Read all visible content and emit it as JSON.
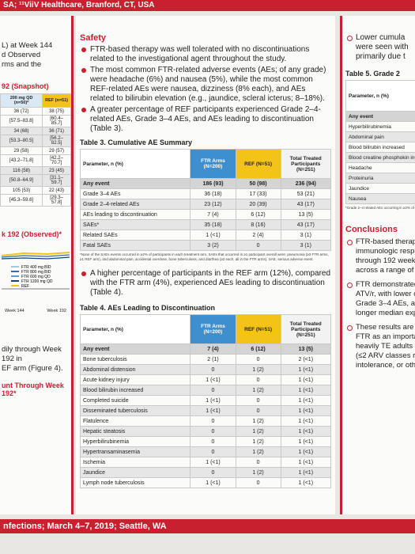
{
  "header": {
    "text": "SA; ¹¹ViiV Healthcare, Branford, CT, USA"
  },
  "footer": {
    "text": "nfections; March 4–7, 2019; Seattle, WA"
  },
  "left": {
    "lines": [
      "L) at Week 144",
      "d Observed",
      "rms and the"
    ],
    "table_title": "92 (Snapshot)",
    "table_headers": [
      "200 mg QD (n=50)*",
      "REF (n=51)"
    ],
    "table_rows": [
      [
        "36 (72)",
        "38 (75)"
      ],
      [
        "[57.5–83.8]",
        "[60.4–85.7]"
      ],
      [
        "34 (68)",
        "36 (71)"
      ],
      [
        "[53.3–80.5]",
        "[56.2–82.5]"
      ],
      [
        "29 (58)",
        "29 (57)"
      ],
      [
        "[43.2–71.8]",
        "[42.2–70.7]"
      ],
      [
        "116 (58)",
        "23 (45)"
      ],
      [
        "[50.8–64.9]",
        "[31.1–59.7]"
      ],
      [
        "105 (53)",
        "22 (43)"
      ],
      [
        "[45.3–59.6]",
        "[29.3–57.8]"
      ]
    ],
    "figure_title": "k 192 (Observed)*",
    "legend": [
      "FTR 400 mg BID",
      "FTR 800 mg BID",
      "FTR 600 mg QD",
      "FTR 1200 mg QD",
      "REF"
    ],
    "axis_labels": [
      "Week 144",
      "Week 192"
    ],
    "text2": [
      "dily through Week 192 in",
      "EF arm (Figure 4)."
    ],
    "figure2_title": "unt Through Week 192*"
  },
  "safety": {
    "title": "Safety",
    "bullets": [
      "FTR-based therapy was well tolerated with no discontinuations related to the investigational agent throughout the study.",
      "The most common FTR-related adverse events (AEs; of any grade) were headache (6%) and nausea (5%), while the most common REF-related AEs were nausea, dizziness (8% each), and AEs related to bilirubin elevation (e.g., jaundice, scleral icterus; 8–18%).",
      "A greater percentage of REF participants experienced Grade 2–4-related AEs, Grade 3–4 AEs, and AEs leading to discontinuation (Table 3)."
    ],
    "bullet2": "A higher percentage of participants in the REF arm (12%), compared with the FTR arm (4%), experienced AEs leading to discontinuation (Table 4)."
  },
  "table3": {
    "title": "Table 3. Cumulative AE Summary",
    "headers": [
      "Parameter, n (%)",
      "FTR Arms (N=200)",
      "REF (N=51)",
      "Total Treated Participants (N=251)"
    ],
    "rows": [
      [
        "Any event",
        "186 (93)",
        "50 (98)",
        "236 (94)"
      ],
      [
        "Grade 3–4 AEs",
        "36 (18)",
        "17 (33)",
        "53 (21)"
      ],
      [
        "Grade 2–4-related AEs",
        "23 (12)",
        "20 (39)",
        "43 (17)"
      ],
      [
        "AEs leading to discontinuation",
        "7 (4)",
        "6 (12)",
        "13 (5)"
      ],
      [
        "SAEs*",
        "35 (18)",
        "8 (16)",
        "43 (17)"
      ],
      [
        "Related SAEs",
        "1 (<1)",
        "2 (4)",
        "3 (1)"
      ],
      [
        "Fatal SAEs",
        "3 (2)",
        "0",
        "3 (1)"
      ]
    ],
    "footnote": "*None of the SAEs events occurred in ≥2% of participants in each treatment arm. SAEs that occurred in ≥1 participant overall were: pneumonia (≥3 FTR arms, ≥1 REF arm), and abdominal pain, accidental overdose, bone tuberculosis, and diarrhea (≥2 each, all in the FTR arms). SAE, serious adverse event."
  },
  "table4": {
    "title": "Table 4. AEs Leading to Discontinuation",
    "headers": [
      "Parameter, n (%)",
      "FTR Arms (N=200)",
      "REF (N=51)",
      "Total Treated Participants (N=251)"
    ],
    "rows": [
      [
        "Any event",
        "7 (4)",
        "6 (12)",
        "13 (5)"
      ],
      [
        "Bone tuberculosis",
        "2 (1)",
        "0",
        "2 (<1)"
      ],
      [
        "Abdominal distension",
        "0",
        "1 (2)",
        "1 (<1)"
      ],
      [
        "Acute kidney injury",
        "1 (<1)",
        "0",
        "1 (<1)"
      ],
      [
        "Blood bilirubin increased",
        "0",
        "1 (2)",
        "1 (<1)"
      ],
      [
        "Completed suicide",
        "1 (<1)",
        "0",
        "1 (<1)"
      ],
      [
        "Disseminated tuberculosis",
        "1 (<1)",
        "0",
        "1 (<1)"
      ],
      [
        "Flatulence",
        "0",
        "1 (2)",
        "1 (<1)"
      ],
      [
        "Hepatic steatosis",
        "0",
        "1 (2)",
        "1 (<1)"
      ],
      [
        "Hyperbilirubinemia",
        "0",
        "1 (2)",
        "1 (<1)"
      ],
      [
        "Hypertransaminasemia",
        "0",
        "1 (2)",
        "1 (<1)"
      ],
      [
        "Ischemia",
        "1 (<1)",
        "0",
        "1 (<1)"
      ],
      [
        "Jaundice",
        "0",
        "1 (2)",
        "1 (<1)"
      ],
      [
        "Lymph node tuberculosis",
        "1 (<1)",
        "0",
        "1 (<1)"
      ]
    ]
  },
  "right": {
    "bullet_lines": [
      "Lower cumula",
      "were seen with",
      "primarily due t"
    ],
    "table5_title": "Table 5. Grade 2",
    "table5_header": "Parameter, n (%)",
    "table5_rows": [
      "Any event",
      "Hyperbilirubinemia",
      "Abdominal pain",
      "Blood bilirubin increased",
      "Blood creatine phosphokin increased",
      "Headache",
      "Proteinuria",
      "Jaundice",
      "Nausea"
    ],
    "table5_footnote": "*Grade 2–4 related AEs occurring in ≥2% of pa",
    "conclusions_title": "Conclusions",
    "conclusions": [
      [
        "FTR-based therap",
        "immunologic resp",
        "through 192 week",
        "across a range of"
      ],
      [
        "FTR demonstrated",
        "ATV/r, with lower c",
        "Grade 3–4 AEs, ar",
        "longer median exp"
      ],
      [
        "These results are s",
        "FTR as an importa",
        "heavily TE adults w",
        "(≤2 ARV classes re",
        "intolerance, or othe"
      ]
    ]
  }
}
